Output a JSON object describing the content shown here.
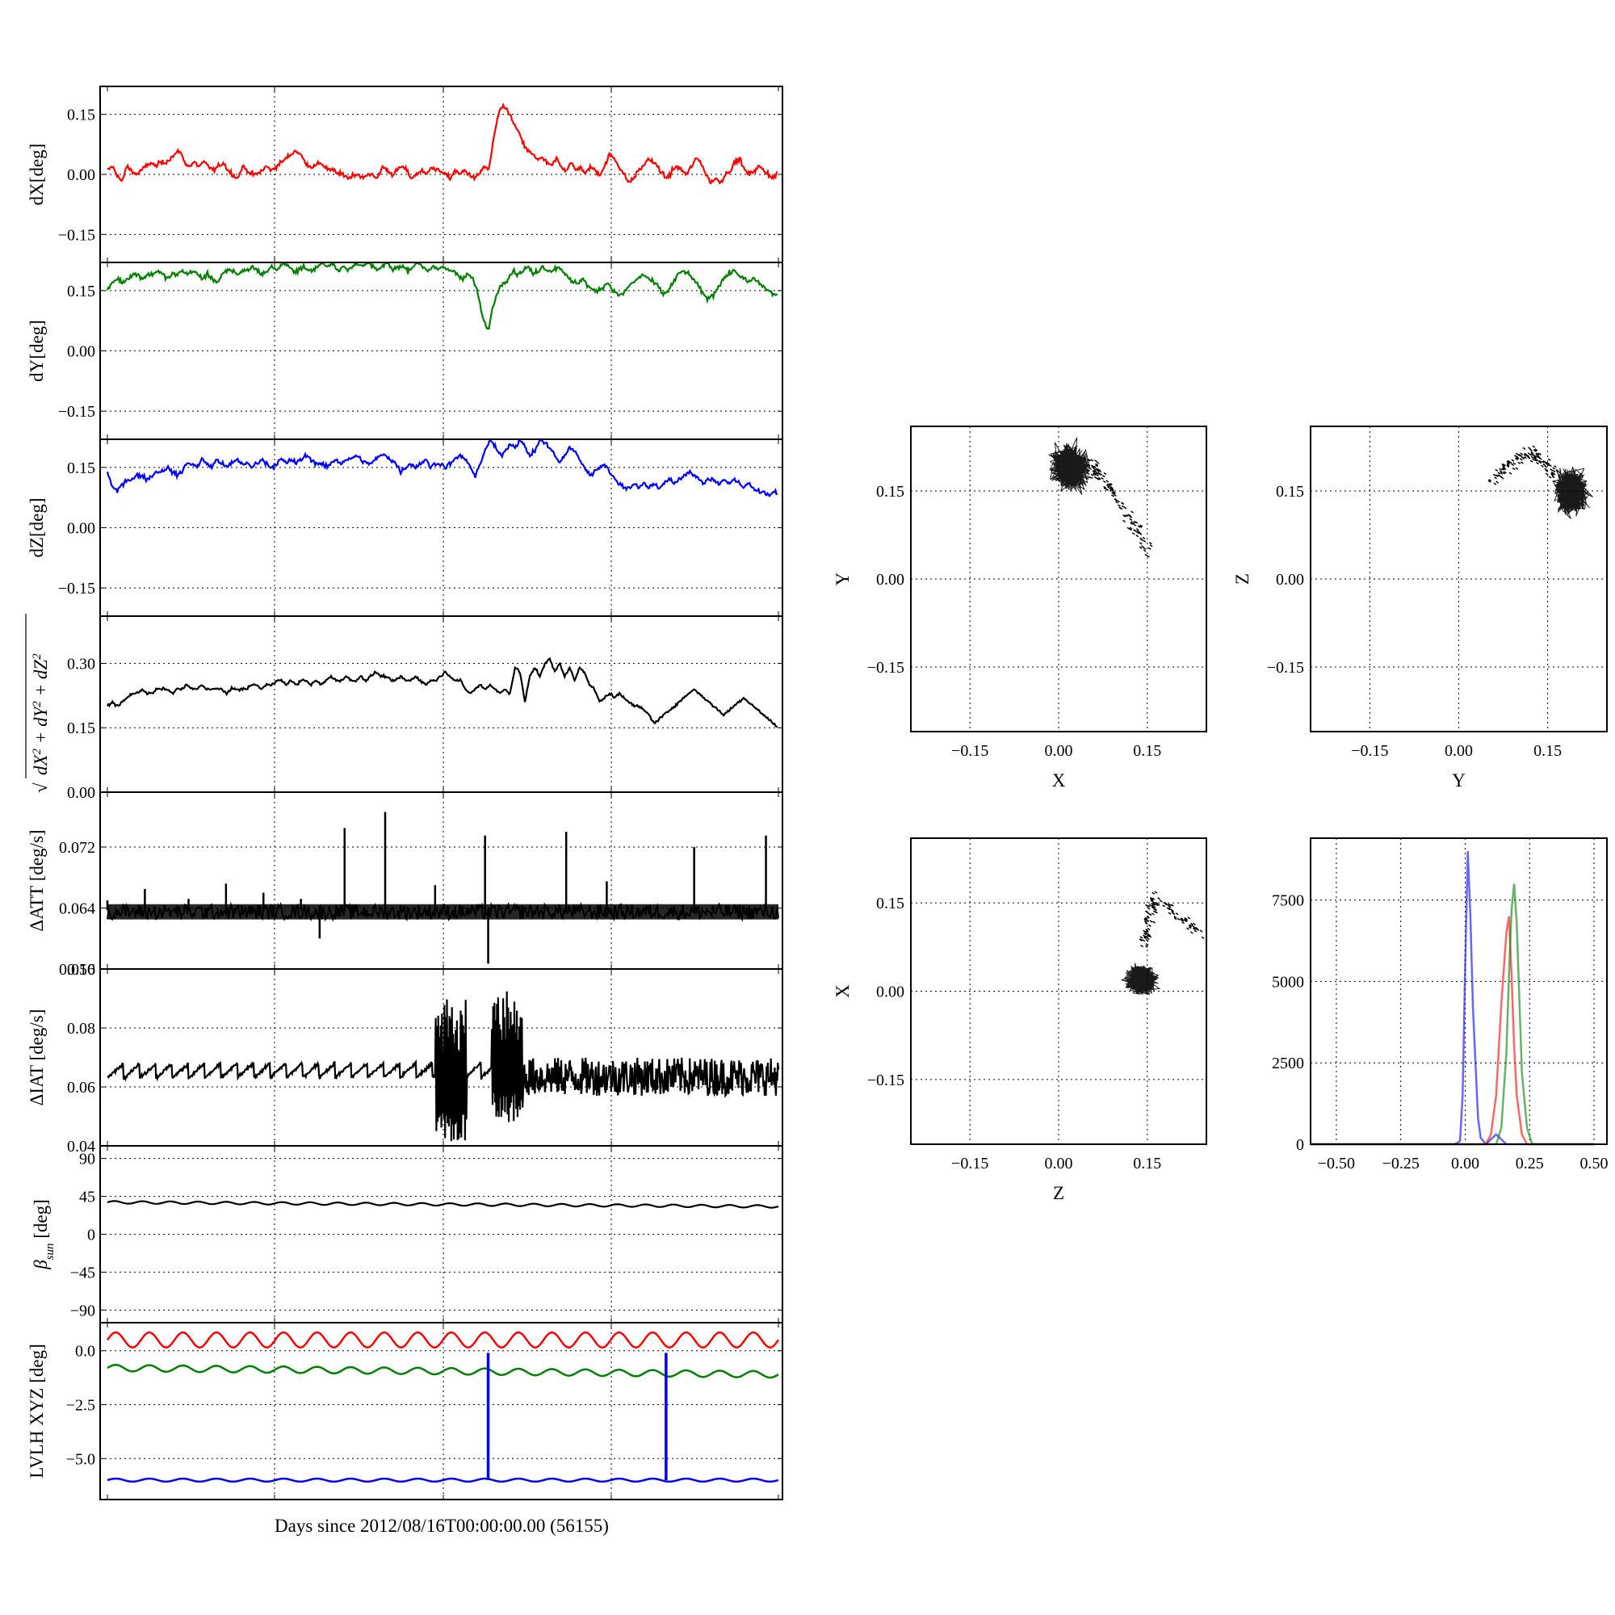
{
  "figure": {
    "x_axis_label": "Days since 2012/08/16T00:00:00.00 (56155)"
  },
  "colors": {
    "red": "#ff0000",
    "green": "#008000",
    "blue": "#0000ff",
    "black": "#000000"
  },
  "chart_data": [
    {
      "id": "dx",
      "type": "line",
      "ylabel": "dX[deg]",
      "ylim": [
        -0.22,
        0.22
      ],
      "yticks": [
        0.15,
        0.0,
        -0.15
      ],
      "ytick_labels": [
        "0.15",
        "0.00",
        "−0.15"
      ],
      "series": [
        {
          "color": "red",
          "values": [
            0.01,
            0.02,
            0.0,
            -0.02,
            0.02,
            0.01,
            0.0,
            0.01,
            0.02,
            0.03,
            0.02,
            0.03,
            0.03,
            0.04,
            0.05,
            0.06,
            0.03,
            0.02,
            0.03,
            0.02,
            0.03,
            0.02,
            0.01,
            0.02,
            0.03,
            0.01,
            0.0,
            -0.01,
            0.02,
            0.01,
            0.0,
            0.0,
            0.01,
            0.02,
            0.01,
            0.02,
            0.03,
            0.04,
            0.05,
            0.06,
            0.05,
            0.03,
            0.02,
            0.02,
            0.03,
            0.02,
            0.01,
            0.01,
            0.0,
            0.0,
            -0.01,
            0.0,
            0.0,
            -0.01,
            0.0,
            0.0,
            -0.01,
            0.02,
            0.01,
            0.0,
            0.01,
            0.02,
            0.01,
            -0.01,
            0.0,
            0.01,
            0.0,
            0.02,
            0.01,
            0.01,
            0.0,
            -0.01,
            0.01,
            0.0,
            0.01,
            0.0,
            -0.01,
            0.0,
            0.02,
            0.01,
            0.09,
            0.15,
            0.17,
            0.16,
            0.13,
            0.11,
            0.08,
            0.06,
            0.05,
            0.04,
            0.04,
            0.03,
            0.02,
            0.04,
            0.02,
            0.01,
            0.03,
            0.01,
            0.02,
            0.0,
            0.02,
            0.01,
            0.0,
            0.02,
            0.05,
            0.04,
            0.02,
            0.0,
            -0.02,
            -0.01,
            0.01,
            0.02,
            0.04,
            0.03,
            0.02,
            0.0,
            -0.01,
            0.01,
            0.02,
            0.01,
            0.0,
            0.02,
            0.04,
            0.03,
            0.0,
            -0.02,
            -0.01,
            -0.02,
            0.0,
            0.01,
            0.03,
            0.04,
            0.01,
            0.0,
            0.01,
            0.02,
            0.01,
            0.0,
            -0.01,
            0.01
          ]
        }
      ]
    },
    {
      "id": "dy",
      "type": "line",
      "ylabel": "dY[deg]",
      "ylim": [
        -0.22,
        0.22
      ],
      "yticks": [
        0.15,
        0.0,
        -0.15
      ],
      "ytick_labels": [
        "0.15",
        "0.00",
        "−0.15"
      ],
      "series": [
        {
          "color": "green",
          "values": [
            0.15,
            0.17,
            0.18,
            0.17,
            0.18,
            0.19,
            0.19,
            0.18,
            0.19,
            0.19,
            0.2,
            0.19,
            0.18,
            0.19,
            0.19,
            0.2,
            0.19,
            0.2,
            0.19,
            0.18,
            0.19,
            0.18,
            0.17,
            0.19,
            0.2,
            0.2,
            0.19,
            0.2,
            0.2,
            0.21,
            0.2,
            0.19,
            0.2,
            0.21,
            0.2,
            0.22,
            0.21,
            0.2,
            0.2,
            0.21,
            0.2,
            0.2,
            0.21,
            0.22,
            0.21,
            0.22,
            0.2,
            0.21,
            0.2,
            0.21,
            0.22,
            0.21,
            0.22,
            0.21,
            0.2,
            0.21,
            0.22,
            0.2,
            0.21,
            0.21,
            0.2,
            0.21,
            0.22,
            0.21,
            0.2,
            0.21,
            0.2,
            0.21,
            0.2,
            0.2,
            0.19,
            0.18,
            0.19,
            0.18,
            0.14,
            0.08,
            0.05,
            0.11,
            0.15,
            0.17,
            0.18,
            0.2,
            0.19,
            0.2,
            0.21,
            0.19,
            0.2,
            0.21,
            0.2,
            0.2,
            0.21,
            0.2,
            0.18,
            0.17,
            0.17,
            0.18,
            0.16,
            0.15,
            0.15,
            0.16,
            0.17,
            0.15,
            0.14,
            0.14,
            0.16,
            0.17,
            0.18,
            0.19,
            0.18,
            0.17,
            0.16,
            0.14,
            0.15,
            0.17,
            0.19,
            0.2,
            0.19,
            0.18,
            0.16,
            0.14,
            0.13,
            0.14,
            0.16,
            0.18,
            0.19,
            0.2,
            0.19,
            0.18,
            0.17,
            0.18,
            0.17,
            0.16,
            0.15,
            0.14,
            0.14
          ]
        }
      ]
    },
    {
      "id": "dz",
      "type": "line",
      "ylabel": "dZ[deg]",
      "ylim": [
        -0.22,
        0.22
      ],
      "yticks": [
        0.15,
        0.0,
        -0.15
      ],
      "ytick_labels": [
        "0.15",
        "0.00",
        "−0.15"
      ],
      "series": [
        {
          "color": "blue",
          "values": [
            0.14,
            0.1,
            0.09,
            0.11,
            0.12,
            0.12,
            0.13,
            0.13,
            0.12,
            0.13,
            0.14,
            0.14,
            0.15,
            0.14,
            0.13,
            0.14,
            0.16,
            0.16,
            0.15,
            0.17,
            0.16,
            0.15,
            0.17,
            0.16,
            0.15,
            0.16,
            0.17,
            0.16,
            0.16,
            0.15,
            0.16,
            0.17,
            0.16,
            0.15,
            0.16,
            0.17,
            0.16,
            0.17,
            0.16,
            0.17,
            0.18,
            0.17,
            0.16,
            0.16,
            0.15,
            0.16,
            0.17,
            0.16,
            0.17,
            0.17,
            0.18,
            0.17,
            0.16,
            0.16,
            0.17,
            0.18,
            0.18,
            0.17,
            0.16,
            0.14,
            0.15,
            0.16,
            0.15,
            0.16,
            0.17,
            0.15,
            0.16,
            0.16,
            0.15,
            0.16,
            0.17,
            0.18,
            0.17,
            0.15,
            0.13,
            0.16,
            0.19,
            0.22,
            0.2,
            0.18,
            0.19,
            0.21,
            0.2,
            0.22,
            0.2,
            0.18,
            0.19,
            0.22,
            0.21,
            0.2,
            0.18,
            0.16,
            0.18,
            0.2,
            0.19,
            0.17,
            0.15,
            0.13,
            0.14,
            0.15,
            0.16,
            0.14,
            0.12,
            0.11,
            0.1,
            0.1,
            0.11,
            0.1,
            0.11,
            0.1,
            0.11,
            0.1,
            0.11,
            0.12,
            0.11,
            0.12,
            0.13,
            0.14,
            0.13,
            0.12,
            0.11,
            0.12,
            0.12,
            0.11,
            0.12,
            0.11,
            0.12,
            0.11,
            0.1,
            0.11,
            0.1,
            0.09,
            0.09,
            0.08,
            0.09,
            0.08
          ]
        }
      ]
    },
    {
      "id": "norm",
      "type": "line",
      "ylabel": "√(dX² + dY² + dZ²)",
      "ylim": [
        0.0,
        0.41
      ],
      "yticks": [
        0.3,
        0.15,
        0.0
      ],
      "ytick_labels": [
        "0.30",
        "0.15",
        "0.00"
      ],
      "series": [
        {
          "color": "black",
          "values": [
            0.2,
            0.21,
            0.2,
            0.21,
            0.22,
            0.23,
            0.23,
            0.24,
            0.23,
            0.23,
            0.24,
            0.24,
            0.24,
            0.23,
            0.24,
            0.24,
            0.25,
            0.24,
            0.24,
            0.25,
            0.24,
            0.24,
            0.24,
            0.24,
            0.23,
            0.24,
            0.24,
            0.24,
            0.24,
            0.25,
            0.25,
            0.24,
            0.25,
            0.25,
            0.26,
            0.26,
            0.25,
            0.26,
            0.25,
            0.26,
            0.26,
            0.25,
            0.26,
            0.25,
            0.26,
            0.27,
            0.26,
            0.26,
            0.27,
            0.26,
            0.26,
            0.27,
            0.26,
            0.27,
            0.28,
            0.27,
            0.27,
            0.26,
            0.26,
            0.27,
            0.26,
            0.26,
            0.27,
            0.26,
            0.25,
            0.26,
            0.26,
            0.27,
            0.28,
            0.27,
            0.26,
            0.26,
            0.24,
            0.23,
            0.24,
            0.25,
            0.24,
            0.25,
            0.24,
            0.23,
            0.24,
            0.23,
            0.29,
            0.28,
            0.21,
            0.27,
            0.29,
            0.27,
            0.3,
            0.31,
            0.28,
            0.3,
            0.27,
            0.29,
            0.26,
            0.29,
            0.28,
            0.25,
            0.24,
            0.21,
            0.22,
            0.23,
            0.22,
            0.23,
            0.22,
            0.21,
            0.2,
            0.2,
            0.19,
            0.18,
            0.16,
            0.17,
            0.18,
            0.19,
            0.2,
            0.21,
            0.22,
            0.23,
            0.24,
            0.23,
            0.22,
            0.21,
            0.2,
            0.19,
            0.18,
            0.19,
            0.2,
            0.21,
            0.22,
            0.21,
            0.2,
            0.19,
            0.18,
            0.17,
            0.16,
            0.15
          ]
        }
      ]
    },
    {
      "id": "datt",
      "type": "line",
      "ylabel": "ΔATT [deg/s]",
      "ylim": [
        0.056,
        0.0792
      ],
      "yticks": [
        0.072,
        0.064,
        0.056
      ],
      "ytick_labels": [
        "0.072",
        "0.064",
        "0.056"
      ],
      "series": [
        {
          "color": "black",
          "band": [
            0.0625,
            0.0645
          ],
          "baseline": 0.0637,
          "spikes": [
            [
              0.0,
              0.065
            ],
            [
              1.2,
              0.0665
            ],
            [
              2.6,
              0.0652
            ],
            [
              3.8,
              0.0672
            ],
            [
              5.0,
              0.066
            ],
            [
              6.2,
              0.0652
            ],
            [
              6.8,
              0.06
            ],
            [
              7.6,
              0.0745
            ],
            [
              8.9,
              0.0766
            ],
            [
              10.5,
              0.067
            ],
            [
              12.1,
              0.0735
            ],
            [
              12.2,
              0.0567
            ],
            [
              14.7,
              0.074
            ],
            [
              16.0,
              0.0675
            ],
            [
              17.1,
              0.0638
            ],
            [
              18.8,
              0.072
            ],
            [
              21.1,
              0.0735
            ]
          ]
        }
      ]
    },
    {
      "id": "diat",
      "type": "line",
      "ylabel": "ΔIAT [deg/s]",
      "ylim": [
        0.04,
        0.1
      ],
      "yticks": [
        0.1,
        0.08,
        0.06,
        0.04
      ],
      "ytick_labels": [
        "0.10",
        "0.08",
        "0.06",
        "0.04"
      ],
      "series": [
        {
          "color": "black",
          "period": 0.52,
          "sawtooth": [
            0.063,
            0.068
          ],
          "bursts": [
            {
              "from": 10.5,
              "to": 11.5,
              "low": 0.041,
              "high": 0.09
            },
            {
              "from": 12.3,
              "to": 13.3,
              "low": 0.048,
              "high": 0.095
            }
          ],
          "noise_after": 13.3,
          "noise_band": [
            0.057,
            0.07
          ]
        }
      ]
    },
    {
      "id": "beta",
      "type": "line",
      "ylabel": "βsun [deg]",
      "ylim": [
        -105,
        105
      ],
      "yticks": [
        90,
        45,
        0,
        -45,
        -90
      ],
      "ytick_labels": [
        "90",
        "45",
        "0",
        "−45",
        "−90"
      ],
      "series": [
        {
          "color": "black",
          "start": 38,
          "end": 33,
          "amplitude": 1.5,
          "cycles": 24
        }
      ]
    },
    {
      "id": "lvlh",
      "type": "line",
      "ylabel": "LVLH XYZ [deg]",
      "ylim": [
        -6.9,
        1.3
      ],
      "yticks": [
        0.0,
        -2.5,
        -5.0
      ],
      "ytick_labels": [
        "0.0",
        "−2.5",
        "−5.0"
      ],
      "xlabel": "Days since 2012/08/16T00:00:00.00 (56155)",
      "series": [
        {
          "color": "red",
          "mean": 0.5,
          "amplitude": 0.35,
          "cycles": 20
        },
        {
          "color": "green",
          "mean": -0.8,
          "amplitude": 0.15,
          "cycles": 20,
          "end_offset": -0.3
        },
        {
          "color": "blue",
          "mean": -6.0,
          "amplitude": 0.07,
          "cycles": 20,
          "spikes": [
            12.2,
            17.9
          ],
          "spike_top": -0.1
        }
      ]
    },
    {
      "id": "scatter-xy",
      "type": "scatter",
      "xlabel": "X",
      "ylabel": "Y",
      "xlim": [
        -0.25,
        0.25
      ],
      "ylim": [
        -0.26,
        0.26
      ],
      "ticks": [
        -0.15,
        0.0,
        0.15
      ],
      "tick_labels": [
        "−0.15",
        "0.00",
        "0.15"
      ],
      "clusters": [
        {
          "cx": 0.02,
          "cy": 0.19,
          "sx": 0.03,
          "sy": 0.035
        }
      ],
      "trail": [
        [
          0.05,
          0.2
        ],
        [
          0.09,
          0.15
        ],
        [
          0.15,
          0.05
        ]
      ]
    },
    {
      "id": "scatter-yz",
      "type": "scatter",
      "xlabel": "Y",
      "ylabel": "Z",
      "xlim": [
        -0.25,
        0.25
      ],
      "ylim": [
        -0.26,
        0.26
      ],
      "ticks": [
        -0.15,
        0.0,
        0.15
      ],
      "tick_labels": [
        "−0.15",
        "0.00",
        "0.15"
      ],
      "clusters": [
        {
          "cx": 0.19,
          "cy": 0.15,
          "sx": 0.025,
          "sy": 0.035
        }
      ],
      "trail": [
        [
          0.05,
          0.17
        ],
        [
          0.12,
          0.22
        ],
        [
          0.16,
          0.18
        ]
      ]
    },
    {
      "id": "scatter-zx",
      "type": "scatter",
      "xlabel": "Z",
      "ylabel": "X",
      "xlim": [
        -0.25,
        0.25
      ],
      "ylim": [
        -0.26,
        0.26
      ],
      "ticks": [
        -0.15,
        0.0,
        0.15
      ],
      "tick_labels": [
        "−0.15",
        "0.00",
        "0.15"
      ],
      "clusters": [
        {
          "cx": 0.14,
          "cy": 0.02,
          "sx": 0.025,
          "sy": 0.022
        }
      ],
      "trail": [
        [
          0.14,
          0.08
        ],
        [
          0.16,
          0.16
        ],
        [
          0.24,
          0.1
        ]
      ]
    },
    {
      "id": "histogram",
      "type": "line",
      "xlim": [
        -0.6,
        0.55
      ],
      "ylim": [
        0,
        9400
      ],
      "xticks": [
        -0.5,
        -0.25,
        0.0,
        0.25,
        0.5
      ],
      "xtick_labels": [
        "−0.50",
        "−0.25",
        "0.00",
        "0.25",
        "0.50"
      ],
      "yticks": [
        0,
        2500,
        5000,
        7500
      ],
      "ytick_labels": [
        "0",
        "2500",
        "5000",
        "7500"
      ],
      "series": [
        {
          "color": "blue",
          "x": [
            -0.6,
            -0.04,
            -0.02,
            -0.01,
            0.0,
            0.01,
            0.02,
            0.03,
            0.04,
            0.05,
            0.06,
            0.08,
            0.12,
            0.16,
            0.5
          ],
          "values": [
            0,
            0,
            100,
            1500,
            5500,
            9000,
            7000,
            4200,
            2500,
            800,
            200,
            0,
            300,
            0,
            0
          ]
        },
        {
          "color": "red",
          "x": [
            -0.6,
            0.08,
            0.1,
            0.12,
            0.14,
            0.16,
            0.17,
            0.18,
            0.19,
            0.2,
            0.22,
            0.24,
            0.5
          ],
          "values": [
            0,
            0,
            300,
            1500,
            4300,
            6500,
            7000,
            5200,
            3000,
            1500,
            300,
            0,
            0
          ]
        },
        {
          "color": "green",
          "x": [
            -0.6,
            0.12,
            0.14,
            0.16,
            0.17,
            0.18,
            0.19,
            0.2,
            0.21,
            0.22,
            0.24,
            0.26,
            0.5
          ],
          "values": [
            0,
            0,
            500,
            2800,
            5200,
            7200,
            8000,
            6800,
            4500,
            2200,
            500,
            0,
            0
          ]
        }
      ]
    }
  ]
}
